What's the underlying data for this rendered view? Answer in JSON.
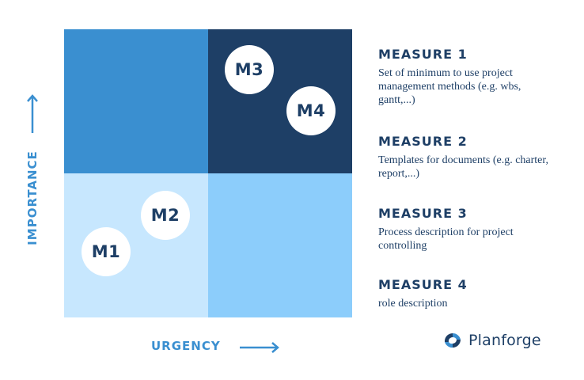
{
  "matrix": {
    "colors": {
      "top_left": "#3a8fd0",
      "top_right": "#1e3f66",
      "bottom_left": "#c7e7fe",
      "bottom_right": "#8ccdfb",
      "marker_text": "#1e3f66",
      "axis_label": "#3a8fd0"
    },
    "y_axis_label": "IMPORTANCE",
    "x_axis_label": "URGENCY",
    "markers": [
      {
        "label": "M1",
        "quadrant": "low urgency / low importance"
      },
      {
        "label": "M2",
        "quadrant": "low urgency / low importance"
      },
      {
        "label": "M3",
        "quadrant": "high urgency / high importance"
      },
      {
        "label": "M4",
        "quadrant": "high urgency / high importance"
      }
    ]
  },
  "measures": [
    {
      "title": "MEASURE 1",
      "description": "Set of minimum to use project management methods (e.g. wbs, gantt,...)"
    },
    {
      "title": "MEASURE 2",
      "description": "Templates for documents (e.g. charter, report,...)"
    },
    {
      "title": "MEASURE 3",
      "description": "Process description for project controlling"
    },
    {
      "title": "MEASURE 4",
      "description": "role description"
    }
  ],
  "brand": {
    "name": "Planforge",
    "logo_icon": "planforge-logo-icon"
  }
}
